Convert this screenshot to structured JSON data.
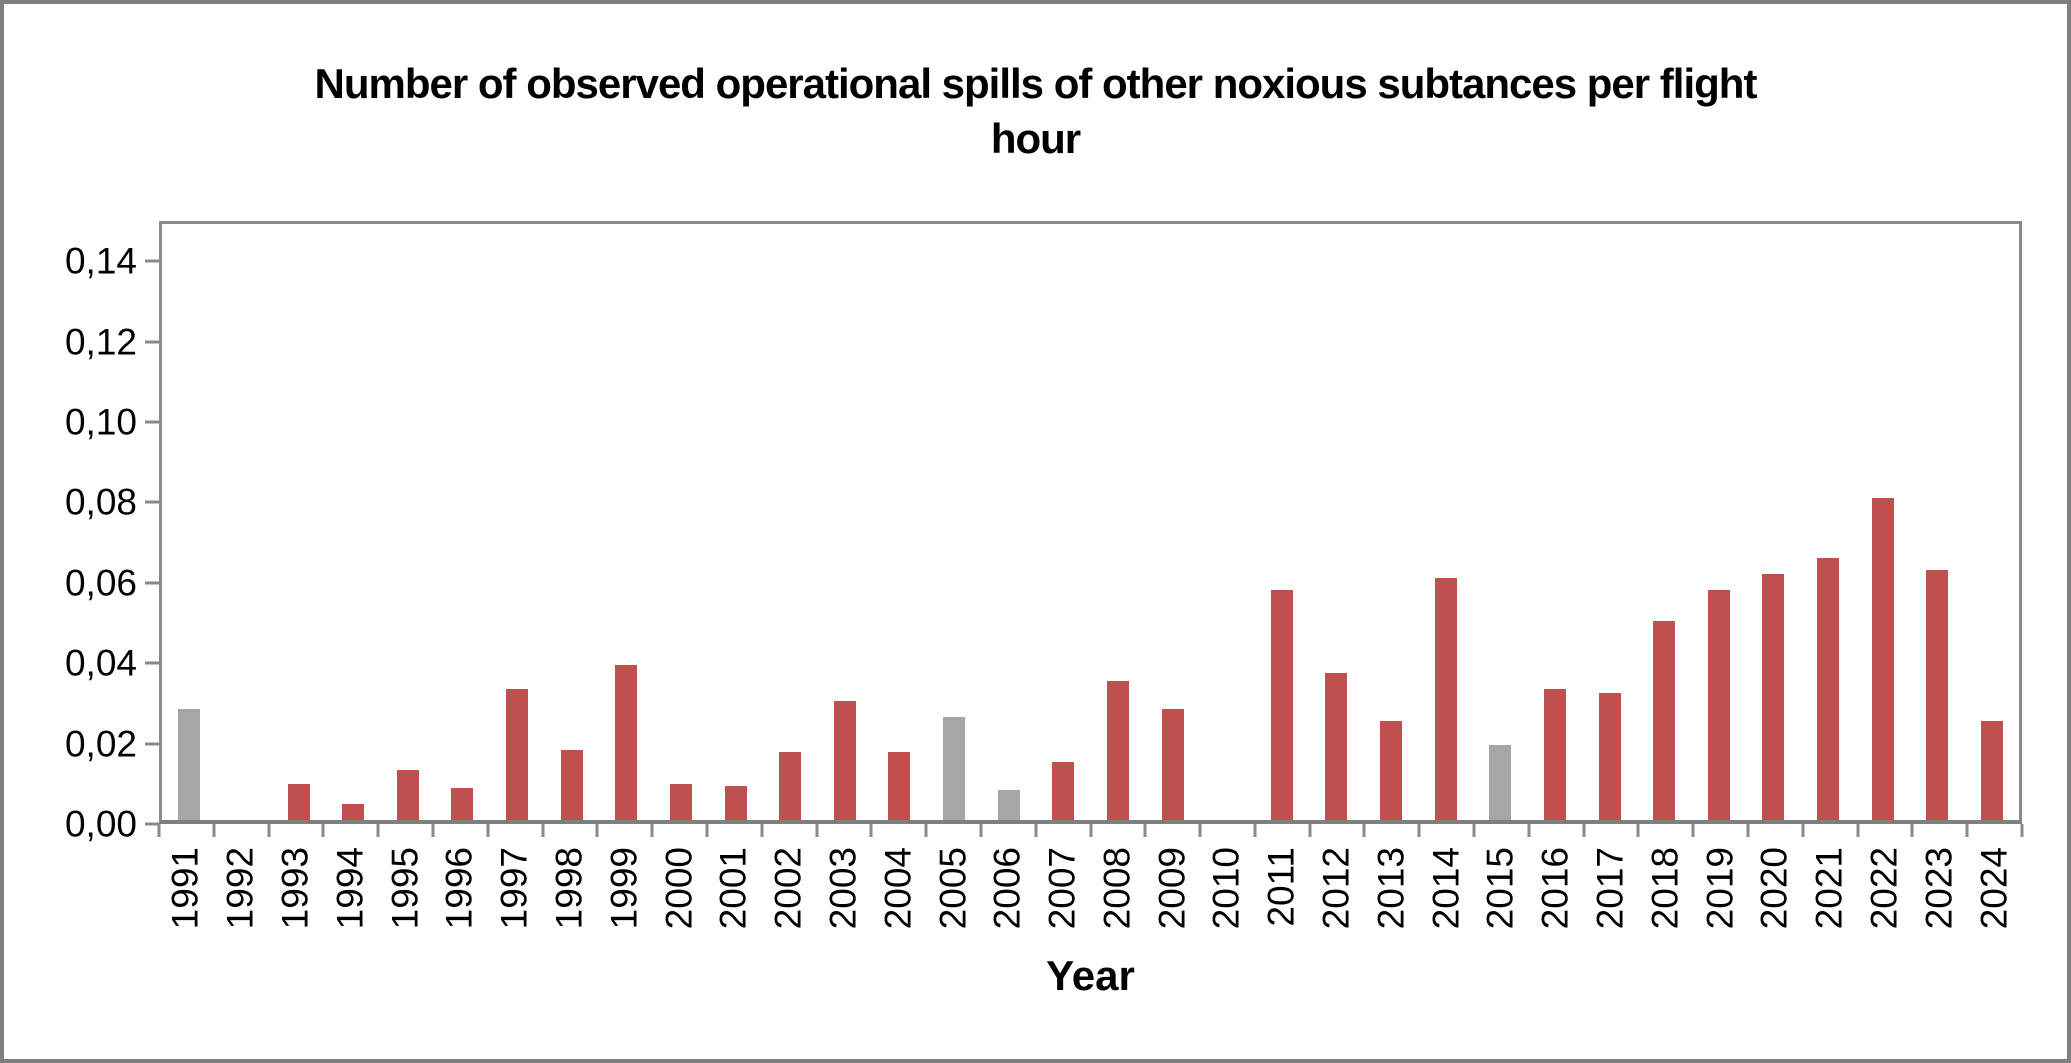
{
  "window": {
    "background": "#FFFFFF",
    "frame_color": "#808080"
  },
  "title": {
    "line1": "Number of observed operational spills of other noxious subtances per flight",
    "line2": "hour"
  },
  "chart_data": {
    "type": "bar",
    "title": "Number of observed operational spills of other noxious subtances per flight hour",
    "xlabel": "Year",
    "ylabel": "",
    "ylim": [
      0,
      0.15
    ],
    "ytick_interval": 0.02,
    "ytick_labels": [
      "0,00",
      "0,02",
      "0,04",
      "0,06",
      "0,08",
      "0,10",
      "0,12",
      "0,14"
    ],
    "grid": false,
    "legend_position": "none",
    "categories": [
      1991,
      1992,
      1993,
      1994,
      1995,
      1996,
      1997,
      1998,
      1999,
      2000,
      2001,
      2002,
      2003,
      2004,
      2005,
      2006,
      2007,
      2008,
      2009,
      2010,
      2011,
      2012,
      2013,
      2014,
      2015,
      2016,
      2017,
      2018,
      2019,
      2020,
      2021,
      2022,
      2023,
      2024
    ],
    "values": [
      0.028,
      0,
      0.009,
      0.004,
      0.0125,
      0.008,
      0.033,
      0.0175,
      0.039,
      0.009,
      0.0085,
      0.017,
      0.03,
      0.017,
      0.026,
      0.0075,
      0.0145,
      0.035,
      0.028,
      0,
      0.058,
      0.037,
      0.025,
      0.061,
      0.019,
      0.033,
      0.032,
      0.05,
      0.058,
      0.062,
      0.066,
      0.081,
      0.063,
      0.025
    ],
    "gray_years": [
      1991,
      2005,
      2006,
      2015
    ],
    "colors": {
      "bar": "#C0504D",
      "gray_bar": "#A6A6A6",
      "axis": "#8A8A8A",
      "text": "#000000"
    }
  }
}
